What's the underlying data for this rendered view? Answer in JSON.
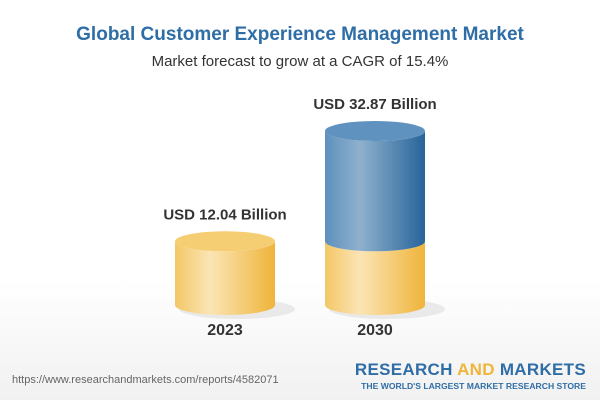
{
  "chart_data": {
    "type": "bar",
    "title": "Global Customer Experience Management Market",
    "subtitle": "Market forecast to grow at a CAGR of 15.4%",
    "categories": [
      "2023",
      "2030"
    ],
    "values": [
      12.04,
      32.87
    ],
    "data_labels": [
      "USD 12.04 Billion",
      "USD 32.87 Billion"
    ],
    "style": "3d-cylinder",
    "colors": {
      "base": "#f2c155",
      "growth": "#3d78ac",
      "title": "#2f6da6"
    }
  },
  "footer": {
    "url": "https://www.researchandmarkets.com/reports/4582071"
  },
  "logo": {
    "word1": "RESEARCH ",
    "word2": "AND",
    "word3": " MARKETS",
    "tagline": "THE WORLD'S LARGEST MARKET RESEARCH STORE"
  }
}
